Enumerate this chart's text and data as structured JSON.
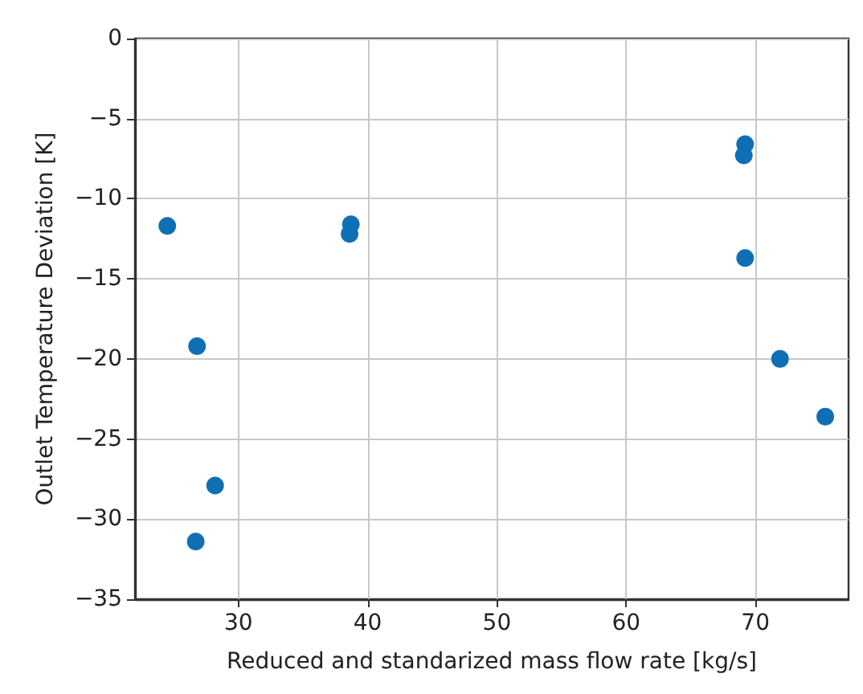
{
  "chart_data": {
    "type": "scatter",
    "xlabel": "Reduced and standarized mass flow rate [kg/s]",
    "ylabel": "Outlet Temperature Deviation [K]",
    "x": [
      24.5,
      26.8,
      28.2,
      26.7,
      38.7,
      38.6,
      69.2,
      69.1,
      69.2,
      71.9,
      75.4
    ],
    "series": [
      {
        "color": "#0f6fb5",
        "values": [
          -11.7,
          -19.2,
          -27.9,
          -31.4,
          -11.6,
          -12.2,
          -6.6,
          -7.3,
          -13.7,
          -20.0,
          -23.6
        ]
      }
    ],
    "xlim": [
      22,
      77.2
    ],
    "xticks": [
      30,
      40,
      50,
      60,
      70
    ],
    "ylim": [
      -35,
      0
    ],
    "yticks": [
      -35,
      -30,
      -25,
      -20,
      -15,
      -10,
      -5,
      0
    ],
    "grid": true,
    "marker": "circle"
  }
}
